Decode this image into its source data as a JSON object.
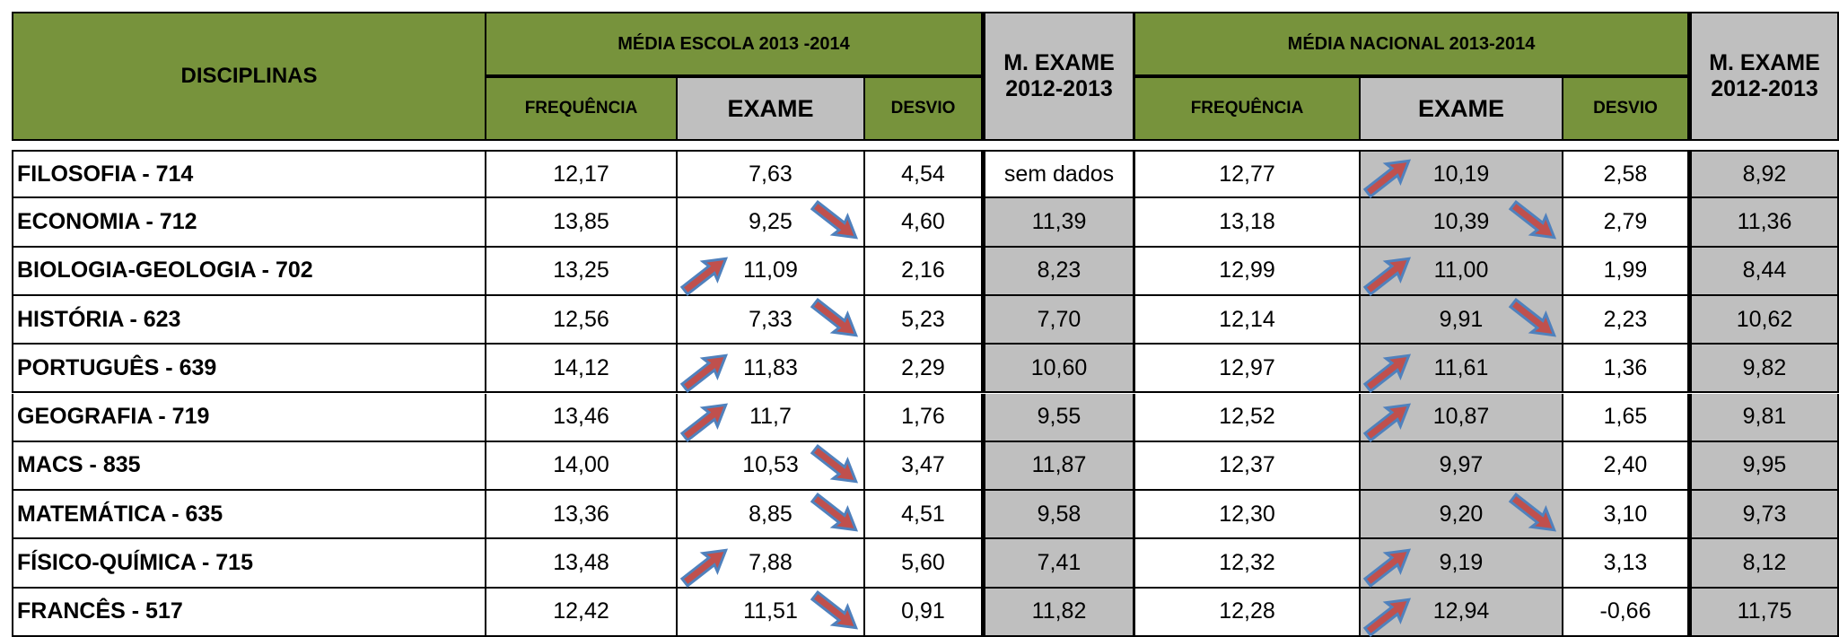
{
  "header": {
    "disciplinas": "DISCIPLINAS",
    "escola": {
      "title": "MÉDIA ESCOLA 2013 -2014",
      "columns": [
        "FREQUÊNCIA",
        "EXAME",
        "DESVIO"
      ]
    },
    "m_exame_escola": [
      "M. EXAME",
      "2012-2013"
    ],
    "nacional": {
      "title": "MÉDIA NACIONAL 2013-2014",
      "columns": [
        "FREQUÊNCIA",
        "EXAME",
        "DESVIO"
      ]
    },
    "m_exame_nacional": [
      "M. EXAME",
      "2012-2013"
    ]
  },
  "rows": [
    {
      "name": "FILOSOFIA - 714",
      "escola": [
        "12,17",
        "7,63",
        "4,54"
      ],
      "m_exame_escola": "sem dados",
      "nacional": [
        "12,77",
        "10,19",
        "2,58"
      ],
      "m_exame_nacional": "8,92",
      "arrows": [
        null,
        "up"
      ]
    },
    {
      "name": "ECONOMIA - 712",
      "escola": [
        "13,85",
        "9,25",
        "4,60"
      ],
      "m_exame_escola": "11,39",
      "nacional": [
        "13,18",
        "10,39",
        "2,79"
      ],
      "m_exame_nacional": "11,36",
      "arrows": [
        "down",
        "down"
      ]
    },
    {
      "name": "BIOLOGIA-GEOLOGIA - 702",
      "escola": [
        "13,25",
        "11,09",
        "2,16"
      ],
      "m_exame_escola": "8,23",
      "nacional": [
        "12,99",
        "11,00",
        "1,99"
      ],
      "m_exame_nacional": "8,44",
      "arrows": [
        "up",
        "up"
      ]
    },
    {
      "name": "HISTÓRIA - 623",
      "escola": [
        "12,56",
        "7,33",
        "5,23"
      ],
      "m_exame_escola": "7,70",
      "nacional": [
        "12,14",
        "9,91",
        "2,23"
      ],
      "m_exame_nacional": "10,62",
      "arrows": [
        "down",
        "down"
      ]
    },
    {
      "name": "PORTUGUÊS - 639",
      "escola": [
        "14,12",
        "11,83",
        "2,29"
      ],
      "m_exame_escola": "10,60",
      "nacional": [
        "12,97",
        "11,61",
        "1,36"
      ],
      "m_exame_nacional": "9,82",
      "arrows": [
        "up",
        "up"
      ]
    },
    {
      "name": "GEOGRAFIA - 719",
      "escola": [
        "13,46",
        "11,7",
        "1,76"
      ],
      "m_exame_escola": "9,55",
      "nacional": [
        "12,52",
        "10,87",
        "1,65"
      ],
      "m_exame_nacional": "9,81",
      "arrows": [
        "up",
        "up"
      ]
    },
    {
      "name": "MACS - 835",
      "escola": [
        "14,00",
        "10,53",
        "3,47"
      ],
      "m_exame_escola": "11,87",
      "nacional": [
        "12,37",
        "9,97",
        "2,40"
      ],
      "m_exame_nacional": "9,95",
      "arrows": [
        "down",
        null
      ]
    },
    {
      "name": "MATEMÁTICA - 635",
      "escola": [
        "13,36",
        "8,85",
        "4,51"
      ],
      "m_exame_escola": "9,58",
      "nacional": [
        "12,30",
        "9,20",
        "3,10"
      ],
      "m_exame_nacional": "9,73",
      "arrows": [
        "down",
        "down"
      ]
    },
    {
      "name": "FÍSICO-QUÍMICA - 715",
      "escola": [
        "13,48",
        "7,88",
        "5,60"
      ],
      "m_exame_escola": "7,41",
      "nacional": [
        "12,32",
        "9,19",
        "3,13"
      ],
      "m_exame_nacional": "8,12",
      "arrows": [
        "up",
        "up"
      ]
    },
    {
      "name": "FRANCÊS - 517",
      "escola": [
        "12,42",
        "11,51",
        "0,91"
      ],
      "m_exame_escola": "11,82",
      "nacional": [
        "12,28",
        "12,94",
        "-0,66"
      ],
      "m_exame_nacional": "11,75",
      "arrows": [
        "down",
        "up"
      ]
    }
  ]
}
